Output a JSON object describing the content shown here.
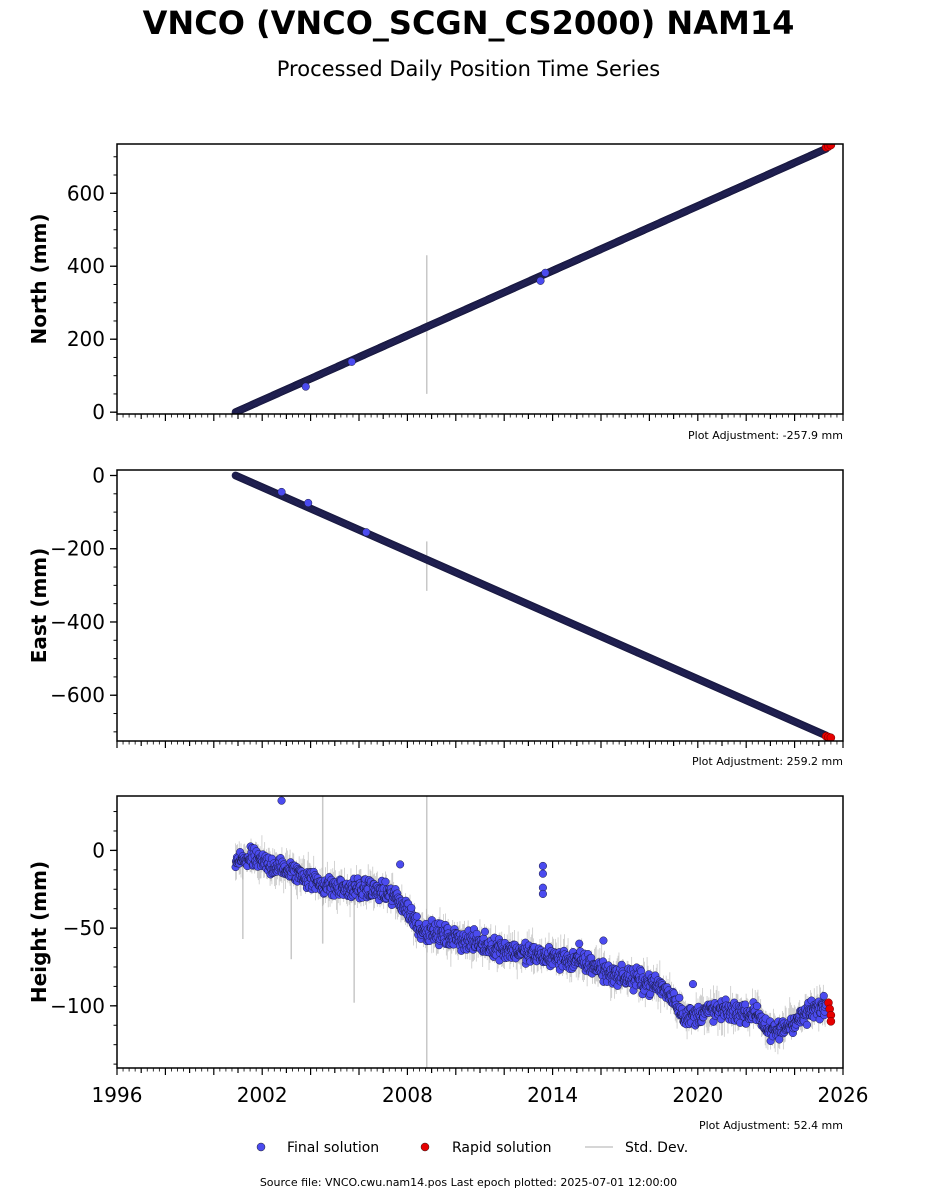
{
  "title": "VNCO (VNCO_SCGN_CS2000) NAM14",
  "subtitle": "Processed Daily Position Time Series",
  "source": "Source file: VNCO.cwu.nam14.pos  Last epoch plotted: 2025-07-01 12:00:00",
  "colors": {
    "final": "#4b4bef",
    "rapid": "#e60000",
    "stddev": "#c8c8c8",
    "edge": "#1a1a40"
  },
  "legend": [
    {
      "label": "Final solution",
      "marker": "dot",
      "color": "#4b4bef"
    },
    {
      "label": "Rapid solution",
      "marker": "dot",
      "color": "#e60000"
    },
    {
      "label": "Std. Dev.",
      "marker": "line",
      "color": "#c8c8c8"
    }
  ],
  "chart_data": [
    {
      "type": "scatter",
      "ylabel": "North (mm)",
      "xlim": [
        1996,
        2026
      ],
      "ylim": [
        -5,
        735
      ],
      "yticks": [
        0,
        200,
        400,
        600
      ],
      "ytick_labels": [
        "0",
        "200",
        "400",
        "600"
      ],
      "xticks": [
        1996,
        2002,
        2008,
        2014,
        2020,
        2026
      ],
      "adjustment": "Plot Adjustment: -257.9 mm",
      "final_trend": {
        "x": [
          2000.9,
          2025.3
        ],
        "y": [
          0,
          722
        ]
      },
      "final_outliers": {
        "x": [
          2003.8,
          2005.7,
          2013.5,
          2013.7
        ],
        "y": [
          70,
          138,
          360,
          382
        ]
      },
      "rapid": {
        "x": [
          2025.3,
          2025.4,
          2025.5
        ],
        "y": [
          726,
          728,
          732
        ]
      },
      "stddev_spikes": [
        {
          "x": 2008.8,
          "y0": 50,
          "y1": 430
        }
      ]
    },
    {
      "type": "scatter",
      "ylabel": "East (mm)",
      "xlim": [
        1996,
        2026
      ],
      "ylim": [
        -725,
        15
      ],
      "yticks": [
        0,
        -200,
        -400,
        -600
      ],
      "ytick_labels": [
        "0",
        "−200",
        "−400",
        "−600"
      ],
      "xticks": [
        1996,
        2002,
        2008,
        2014,
        2020,
        2026
      ],
      "adjustment": "Plot Adjustment: 259.2 mm",
      "final_trend": {
        "x": [
          2000.9,
          2025.3
        ],
        "y": [
          0,
          -710
        ]
      },
      "final_outliers": {
        "x": [
          2002.8,
          2003.9,
          2006.3
        ],
        "y": [
          -45,
          -75,
          -155
        ]
      },
      "rapid": {
        "x": [
          2025.3,
          2025.4,
          2025.5
        ],
        "y": [
          -712,
          -714,
          -716
        ]
      },
      "stddev_spikes": [
        {
          "x": 2008.8,
          "y0": -315,
          "y1": -180
        }
      ]
    },
    {
      "type": "scatter",
      "ylabel": "Height (mm)",
      "xlim": [
        1996,
        2026
      ],
      "ylim": [
        -140,
        35
      ],
      "yticks": [
        0,
        -50,
        -100
      ],
      "ytick_labels": [
        "0",
        "−50",
        "−100"
      ],
      "xticks": [
        1996,
        2002,
        2008,
        2014,
        2020,
        2026
      ],
      "xtick_labels": [
        "1996",
        "2002",
        "2008",
        "2014",
        "2020",
        "2026"
      ],
      "adjustment": "Plot Adjustment: 52.4 mm",
      "final_knots": {
        "x": [
          2000.9,
          2001.5,
          2002.5,
          2003.5,
          2004.5,
          2005.5,
          2006.5,
          2007.5,
          2008.0,
          2008.5,
          2009.5,
          2010.5,
          2011.5,
          2012.5,
          2013.5,
          2014.5,
          2015.5,
          2016.5,
          2017.5,
          2018.5,
          2019.0,
          2019.5,
          2020.5,
          2021.5,
          2022.5,
          2023.0,
          2023.5,
          2024.5,
          2025.3
        ],
        "y": [
          -8,
          -5,
          -10,
          -15,
          -22,
          -25,
          -25,
          -30,
          -38,
          -50,
          -55,
          -58,
          -62,
          -65,
          -68,
          -70,
          -73,
          -80,
          -83,
          -88,
          -95,
          -108,
          -103,
          -104,
          -105,
          -118,
          -115,
          -105,
          -100
        ]
      },
      "final_outliers": {
        "x": [
          2002.8,
          2007.7,
          2013.6,
          2013.6,
          2013.6,
          2013.6,
          2016.1,
          2015.1,
          2019.8
        ],
        "y": [
          32,
          -9,
          -10,
          -15,
          -24,
          -28,
          -58,
          -60,
          -86
        ]
      },
      "rapid": {
        "x": [
          2025.4,
          2025.45,
          2025.5,
          2025.5
        ],
        "y": [
          -98,
          -102,
          -106,
          -110
        ]
      },
      "stddev_spikes": [
        {
          "x": 2008.8,
          "y0": -140,
          "y1": 35
        },
        {
          "x": 2004.5,
          "y0": -60,
          "y1": 35
        },
        {
          "x": 2005.8,
          "y0": -98,
          "y1": -20
        },
        {
          "x": 2001.2,
          "y0": -57,
          "y1": -5
        },
        {
          "x": 2003.2,
          "y0": -70,
          "y1": -15
        }
      ]
    }
  ]
}
